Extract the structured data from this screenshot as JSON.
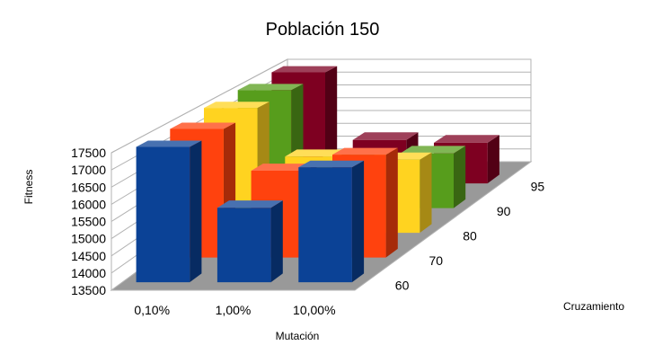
{
  "chart_data": {
    "type": "bar",
    "title": "Población 150",
    "xlabel": "Mutación",
    "ylabel": "Fitness",
    "zlabel": "Cruzamiento",
    "categories": [
      "0,10%",
      "1,00%",
      "10,00%"
    ],
    "depth_categories": [
      "60",
      "70",
      "80",
      "90",
      "95"
    ],
    "ylim": [
      13500,
      17500
    ],
    "yticks": [
      "13500",
      "14000",
      "14500",
      "15000",
      "15500",
      "16000",
      "16500",
      "17000",
      "17500"
    ],
    "series": [
      {
        "name": "60",
        "color": "#0b4296",
        "values": [
          17500,
          15700,
          16900
        ]
      },
      {
        "name": "70",
        "color": "#ff420e",
        "values": [
          17500,
          16200,
          16700
        ]
      },
      {
        "name": "80",
        "color": "#ffd320",
        "values": [
          17600,
          16000,
          15900
        ]
      },
      {
        "name": "90",
        "color": "#579d1c",
        "values": [
          17600,
          15200,
          15400
        ]
      },
      {
        "name": "95",
        "color": "#7e0021",
        "values": [
          17600,
          15100,
          15000
        ]
      }
    ],
    "grid": true,
    "legend": "none"
  }
}
